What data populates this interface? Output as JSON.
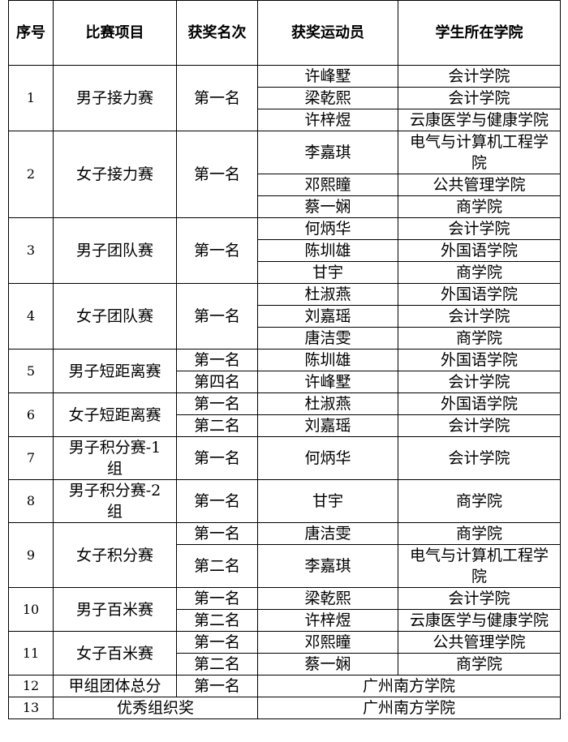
{
  "table": {
    "header": [
      "序号",
      "比赛项目",
      "获奖名次",
      "获奖运动员",
      "学生所在学院"
    ],
    "groups": [
      {
        "no": "1",
        "event": "男子接力赛",
        "awards": [
          {
            "rank": "第一名",
            "winners": [
              {
                "athlete": "许峰墅",
                "college": "会计学院"
              },
              {
                "athlete": "梁乾熙",
                "college": "会计学院"
              },
              {
                "athlete": "许梓煜",
                "college": "云康医学与健康学院"
              }
            ]
          }
        ]
      },
      {
        "no": "2",
        "event": "女子接力赛",
        "awards": [
          {
            "rank": "第一名",
            "winners": [
              {
                "athlete": "李嘉琪",
                "college": "电气与计算机工程学院"
              },
              {
                "athlete": "邓熙瞳",
                "college": "公共管理学院"
              },
              {
                "athlete": "蔡一娴",
                "college": "商学院"
              }
            ]
          }
        ]
      },
      {
        "no": "3",
        "event": "男子团队赛",
        "awards": [
          {
            "rank": "第一名",
            "winners": [
              {
                "athlete": "何炳华",
                "college": "会计学院"
              },
              {
                "athlete": "陈圳雄",
                "college": "外国语学院"
              },
              {
                "athlete": "甘宇",
                "college": "商学院"
              }
            ]
          }
        ]
      },
      {
        "no": "4",
        "event": "女子团队赛",
        "awards": [
          {
            "rank": "第一名",
            "winners": [
              {
                "athlete": "杜淑燕",
                "college": "外国语学院"
              },
              {
                "athlete": "刘嘉瑶",
                "college": "会计学院"
              },
              {
                "athlete": "唐洁雯",
                "college": "商学院"
              }
            ]
          }
        ]
      },
      {
        "no": "5",
        "event": "男子短距离赛",
        "awards": [
          {
            "rank": "第一名",
            "winners": [
              {
                "athlete": "陈圳雄",
                "college": "外国语学院"
              }
            ]
          },
          {
            "rank": "第四名",
            "winners": [
              {
                "athlete": "许峰墅",
                "college": "会计学院"
              }
            ]
          }
        ]
      },
      {
        "no": "6",
        "event": "女子短距离赛",
        "awards": [
          {
            "rank": "第一名",
            "winners": [
              {
                "athlete": "杜淑燕",
                "college": "外国语学院"
              }
            ]
          },
          {
            "rank": "第二名",
            "winners": [
              {
                "athlete": "刘嘉瑶",
                "college": "会计学院"
              }
            ]
          }
        ]
      },
      {
        "no": "7",
        "event": "男子积分赛-1组",
        "awards": [
          {
            "rank": "第一名",
            "winners": [
              {
                "athlete": "何炳华",
                "college": "会计学院"
              }
            ]
          }
        ]
      },
      {
        "no": "8",
        "event": "男子积分赛-2组",
        "awards": [
          {
            "rank": "第一名",
            "winners": [
              {
                "athlete": "甘宇",
                "college": "商学院"
              }
            ]
          }
        ]
      },
      {
        "no": "9",
        "event": "女子积分赛",
        "awards": [
          {
            "rank": "第一名",
            "winners": [
              {
                "athlete": "唐洁雯",
                "college": "商学院"
              }
            ]
          },
          {
            "rank": "第二名",
            "winners": [
              {
                "athlete": "李嘉琪",
                "college": "电气与计算机工程学院"
              }
            ]
          }
        ]
      },
      {
        "no": "10",
        "event": "男子百米赛",
        "awards": [
          {
            "rank": "第一名",
            "winners": [
              {
                "athlete": "梁乾熙",
                "college": "会计学院"
              }
            ]
          },
          {
            "rank": "第二名",
            "winners": [
              {
                "athlete": "许梓煜",
                "college": "云康医学与健康学院"
              }
            ]
          }
        ]
      },
      {
        "no": "11",
        "event": "女子百米赛",
        "awards": [
          {
            "rank": "第一名",
            "winners": [
              {
                "athlete": "邓熙瞳",
                "college": "公共管理学院"
              }
            ]
          },
          {
            "rank": "第二名",
            "winners": [
              {
                "athlete": "蔡一娴",
                "college": "商学院"
              }
            ]
          }
        ]
      },
      {
        "no": "12",
        "event": "甲组团体总分",
        "awards": [
          {
            "rank": "第一名",
            "winners": [
              {
                "team": "广州南方学院"
              }
            ]
          }
        ]
      },
      {
        "no": "13",
        "event": "优秀组织奖",
        "awards": [
          {
            "winners": [
              {
                "team": "广州南方学院"
              }
            ]
          }
        ]
      }
    ]
  }
}
